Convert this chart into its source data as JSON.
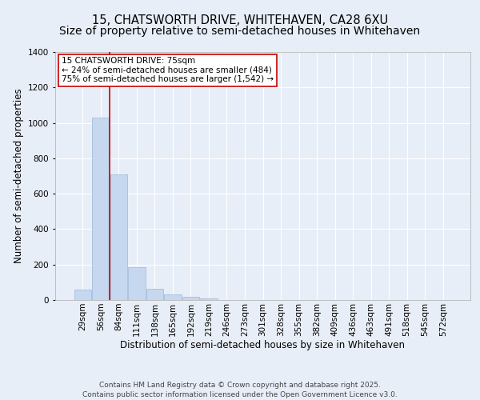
{
  "title": "15, CHATSWORTH DRIVE, WHITEHAVEN, CA28 6XU",
  "subtitle": "Size of property relative to semi-detached houses in Whitehaven",
  "xlabel": "Distribution of semi-detached houses by size in Whitehaven",
  "ylabel": "Number of semi-detached properties",
  "categories": [
    "29sqm",
    "56sqm",
    "84sqm",
    "111sqm",
    "138sqm",
    "165sqm",
    "192sqm",
    "219sqm",
    "246sqm",
    "273sqm",
    "301sqm",
    "328sqm",
    "355sqm",
    "382sqm",
    "409sqm",
    "436sqm",
    "463sqm",
    "491sqm",
    "518sqm",
    "545sqm",
    "572sqm"
  ],
  "values": [
    60,
    1030,
    710,
    185,
    65,
    30,
    20,
    10,
    0,
    0,
    0,
    0,
    0,
    0,
    0,
    0,
    0,
    0,
    0,
    0,
    0
  ],
  "bar_color": "#c5d8f0",
  "bar_edge_color": "#9ab8d8",
  "bg_color": "#e8eef7",
  "plot_bg_color": "#e8eef7",
  "grid_color": "#ffffff",
  "vline_x": 1.5,
  "vline_color": "#cc0000",
  "annotation_text": "15 CHATSWORTH DRIVE: 75sqm\n← 24% of semi-detached houses are smaller (484)\n75% of semi-detached houses are larger (1,542) →",
  "annotation_box_color": "#ffffff",
  "annotation_box_edge": "#cc0000",
  "footer": "Contains HM Land Registry data © Crown copyright and database right 2025.\nContains public sector information licensed under the Open Government Licence v3.0.",
  "ylim": [
    0,
    1400
  ],
  "yticks": [
    0,
    200,
    400,
    600,
    800,
    1000,
    1200,
    1400
  ],
  "title_fontsize": 10.5,
  "xlabel_fontsize": 8.5,
  "ylabel_fontsize": 8.5,
  "tick_fontsize": 7.5,
  "annotation_fontsize": 7.5,
  "footer_fontsize": 6.5
}
